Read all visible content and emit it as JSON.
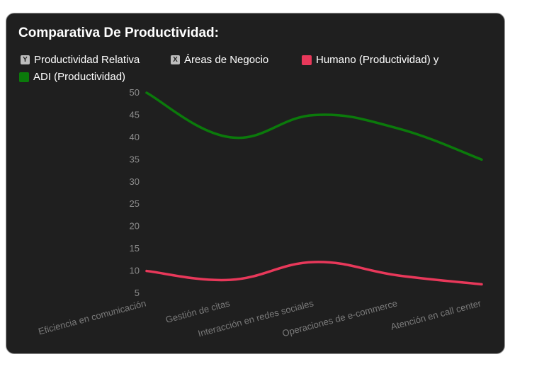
{
  "chart_data": {
    "type": "line",
    "title": "Comparativa De Productividad:",
    "legend": {
      "y_label": "Productividad Relativa",
      "x_label": "Áreas de Negocio",
      "y_badge": "Y",
      "x_badge": "X"
    },
    "categories": [
      "Eficiencia en comunicación",
      "Gestión de citas",
      "Interacción en redes sociales",
      "Operaciones de e-commerce",
      "Atención en call center"
    ],
    "series": [
      {
        "name": "Humano (Productividad) y",
        "color": "#e8385a",
        "values": [
          10,
          8,
          12,
          9,
          7
        ]
      },
      {
        "name": "ADI (Productividad)",
        "color": "#0b7a0b",
        "values": [
          50,
          40,
          45,
          42,
          35
        ]
      }
    ],
    "ylim": [
      5,
      50
    ],
    "yticks": [
      5,
      10,
      15,
      20,
      25,
      30,
      35,
      40,
      45,
      50
    ],
    "grid": false
  },
  "colors": {
    "background": "#1f1f1f",
    "border": "#9a9a9a"
  }
}
